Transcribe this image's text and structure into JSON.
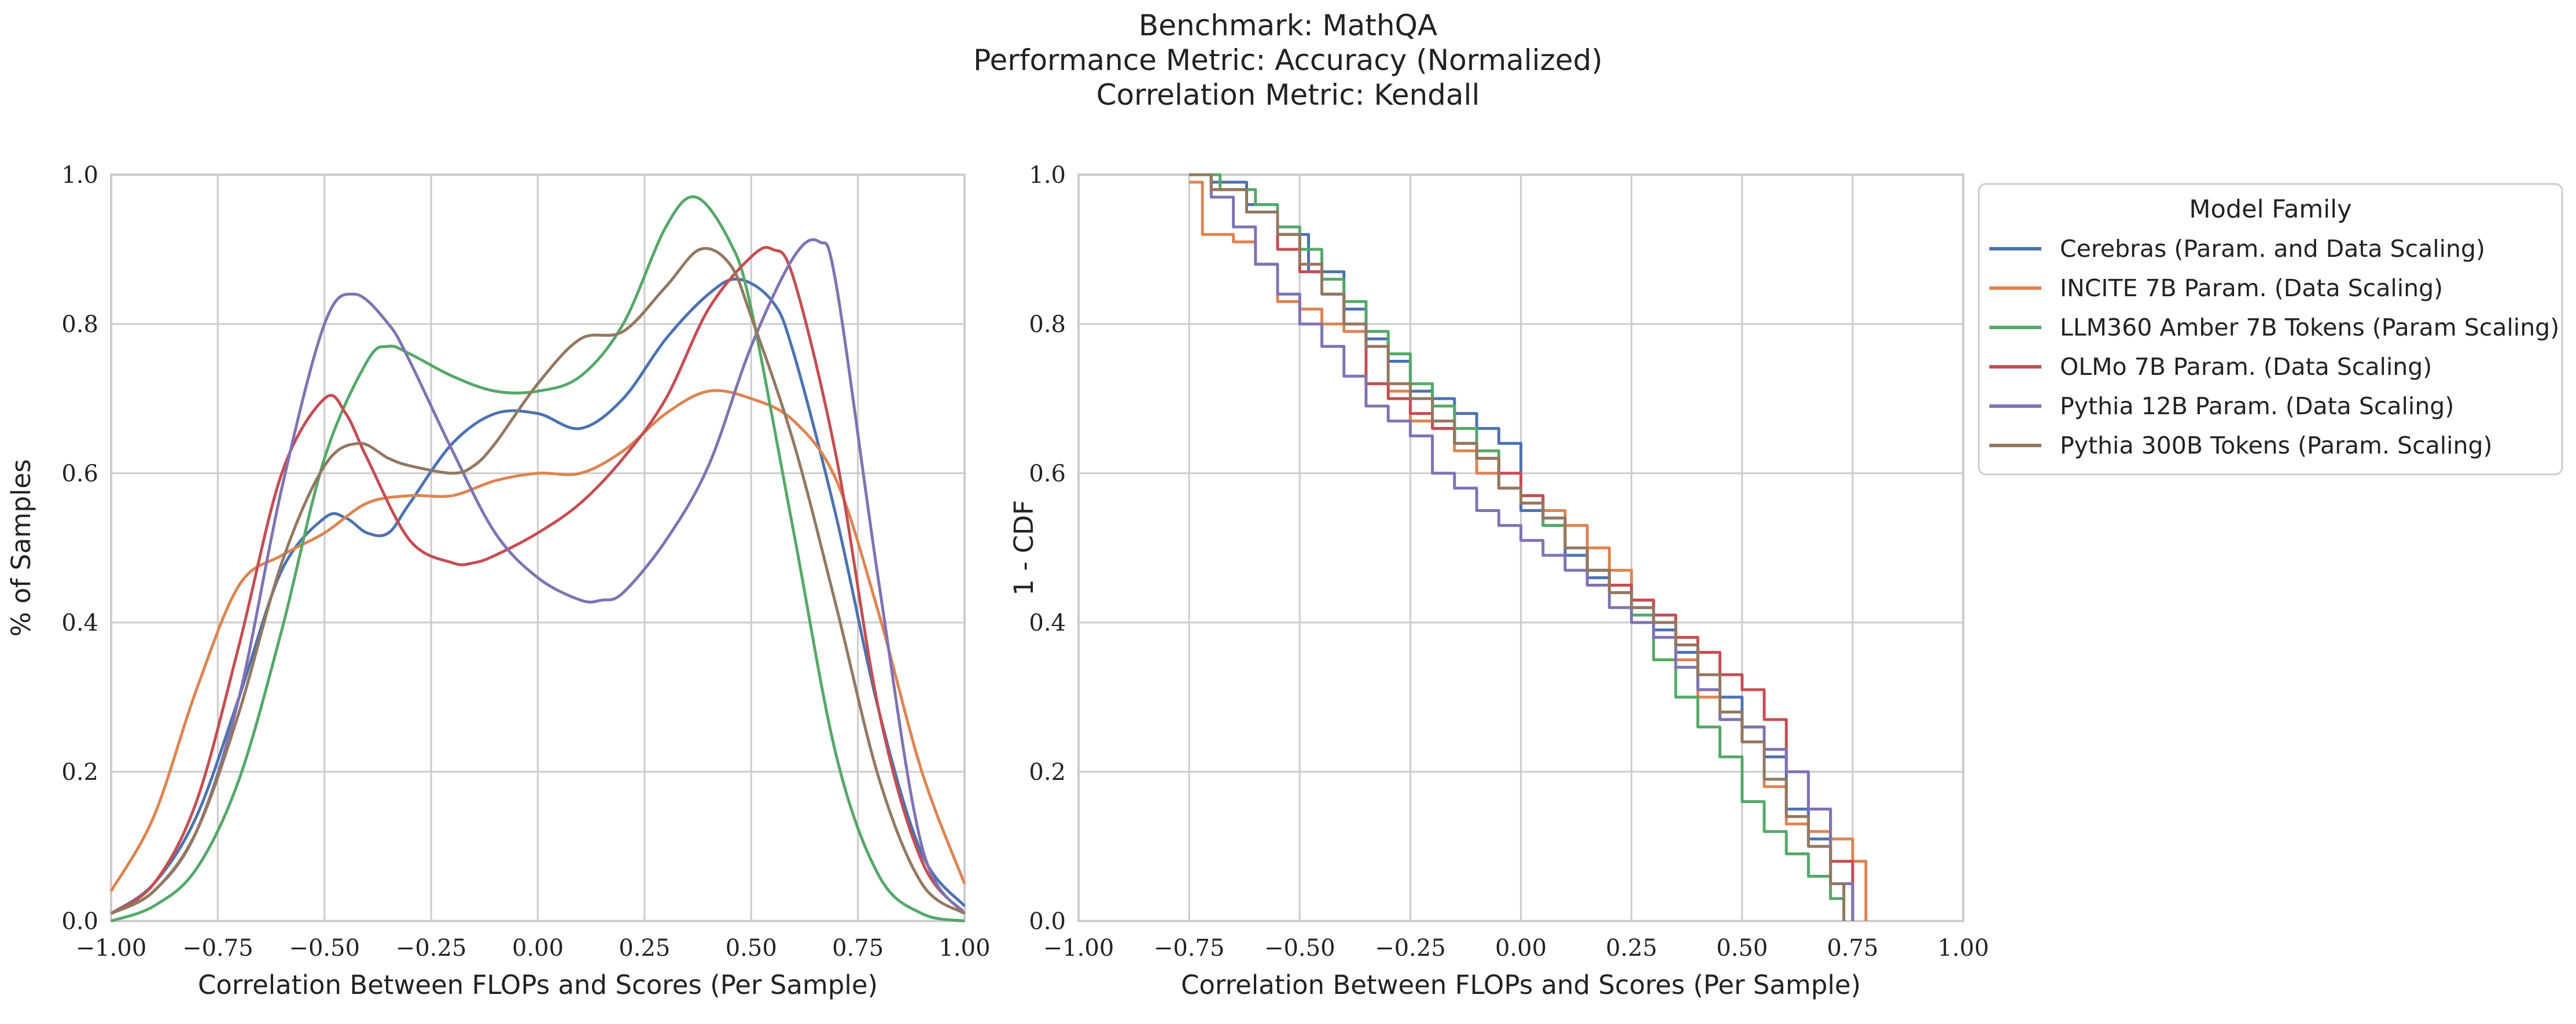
{
  "title_lines": [
    "Benchmark: MathQA",
    "Performance Metric: Accuracy (Normalized)",
    "Correlation Metric: Kendall"
  ],
  "colors": {
    "Cerebras": "#4c72b0",
    "INCITE": "#dd8452",
    "LLM360": "#55a868",
    "OLMo": "#c44e52",
    "Pythia12B": "#8172b3",
    "Pythia300B": "#937860",
    "grid": "#cccccc",
    "frame": "#cccccc"
  },
  "legend": {
    "title": "Model Family",
    "entries": [
      {
        "key": "Cerebras",
        "label": "Cerebras (Param. and Data Scaling)"
      },
      {
        "key": "INCITE",
        "label": "INCITE 7B Param. (Data Scaling)"
      },
      {
        "key": "LLM360",
        "label": "LLM360 Amber 7B Tokens (Param Scaling)"
      },
      {
        "key": "OLMo",
        "label": "OLMo 7B Param. (Data Scaling)"
      },
      {
        "key": "Pythia12B",
        "label": "Pythia 12B Param. (Data Scaling)"
      },
      {
        "key": "Pythia300B",
        "label": "Pythia 300B Tokens (Param. Scaling)"
      }
    ]
  },
  "chart_data": [
    {
      "type": "line",
      "xlabel": "Correlation Between FLOPs and Scores (Per Sample)",
      "ylabel": "% of Samples",
      "xlim": [
        -1.0,
        1.0
      ],
      "ylim": [
        0.0,
        1.0
      ],
      "xticks": [
        "−1.00",
        "−0.75",
        "−0.50",
        "−0.25",
        "0.00",
        "0.25",
        "0.50",
        "0.75",
        "1.00"
      ],
      "yticks": [
        "0.0",
        "0.2",
        "0.4",
        "0.6",
        "0.8",
        "1.0"
      ],
      "grid": true,
      "series": [
        {
          "key": "Cerebras",
          "name": "Cerebras (Param. and Data Scaling)",
          "x": [
            -1.0,
            -0.9,
            -0.8,
            -0.7,
            -0.6,
            -0.5,
            -0.45,
            -0.4,
            -0.35,
            -0.3,
            -0.2,
            -0.1,
            0.0,
            0.1,
            0.2,
            0.3,
            0.4,
            0.47,
            0.55,
            0.6,
            0.7,
            0.8,
            0.9,
            1.0
          ],
          "y": [
            0.01,
            0.05,
            0.14,
            0.3,
            0.47,
            0.54,
            0.54,
            0.52,
            0.52,
            0.56,
            0.64,
            0.68,
            0.68,
            0.66,
            0.7,
            0.78,
            0.84,
            0.86,
            0.83,
            0.76,
            0.54,
            0.28,
            0.09,
            0.02
          ]
        },
        {
          "key": "INCITE",
          "name": "INCITE 7B Param. (Data Scaling)",
          "x": [
            -1.0,
            -0.9,
            -0.8,
            -0.7,
            -0.6,
            -0.5,
            -0.4,
            -0.3,
            -0.2,
            -0.1,
            0.0,
            0.1,
            0.2,
            0.3,
            0.4,
            0.5,
            0.6,
            0.7,
            0.8,
            0.9,
            1.0
          ],
          "y": [
            0.04,
            0.14,
            0.31,
            0.45,
            0.49,
            0.52,
            0.56,
            0.57,
            0.57,
            0.59,
            0.6,
            0.6,
            0.63,
            0.68,
            0.71,
            0.7,
            0.67,
            0.59,
            0.41,
            0.2,
            0.05
          ]
        },
        {
          "key": "LLM360",
          "name": "LLM360 Amber 7B Tokens (Param Scaling)",
          "x": [
            -1.0,
            -0.9,
            -0.8,
            -0.7,
            -0.6,
            -0.5,
            -0.4,
            -0.35,
            -0.3,
            -0.2,
            -0.1,
            0.0,
            0.1,
            0.2,
            0.3,
            0.37,
            0.45,
            0.5,
            0.6,
            0.7,
            0.8,
            0.9,
            1.0
          ],
          "y": [
            0.0,
            0.02,
            0.07,
            0.19,
            0.39,
            0.62,
            0.75,
            0.77,
            0.76,
            0.73,
            0.71,
            0.71,
            0.73,
            0.8,
            0.93,
            0.97,
            0.91,
            0.82,
            0.52,
            0.22,
            0.06,
            0.01,
            0.0
          ]
        },
        {
          "key": "OLMo",
          "name": "OLMo 7B Param. (Data Scaling)",
          "x": [
            -1.0,
            -0.9,
            -0.8,
            -0.7,
            -0.6,
            -0.5,
            -0.45,
            -0.4,
            -0.3,
            -0.2,
            -0.15,
            -0.1,
            0.0,
            0.1,
            0.2,
            0.3,
            0.4,
            0.5,
            0.55,
            0.6,
            0.7,
            0.8,
            0.9,
            1.0
          ],
          "y": [
            0.01,
            0.05,
            0.16,
            0.37,
            0.6,
            0.7,
            0.68,
            0.62,
            0.51,
            0.48,
            0.48,
            0.49,
            0.52,
            0.56,
            0.62,
            0.7,
            0.82,
            0.89,
            0.9,
            0.86,
            0.62,
            0.28,
            0.08,
            0.01
          ]
        },
        {
          "key": "Pythia12B",
          "name": "Pythia 12B Param. (Data Scaling)",
          "x": [
            -1.0,
            -0.9,
            -0.8,
            -0.7,
            -0.6,
            -0.5,
            -0.43,
            -0.35,
            -0.3,
            -0.2,
            -0.1,
            0.0,
            0.1,
            0.15,
            0.2,
            0.3,
            0.4,
            0.5,
            0.6,
            0.66,
            0.7,
            0.8,
            0.9,
            1.0
          ],
          "y": [
            0.01,
            0.04,
            0.12,
            0.3,
            0.58,
            0.8,
            0.84,
            0.8,
            0.75,
            0.63,
            0.52,
            0.46,
            0.43,
            0.43,
            0.44,
            0.51,
            0.61,
            0.77,
            0.89,
            0.91,
            0.85,
            0.45,
            0.1,
            0.01
          ]
        },
        {
          "key": "Pythia300B",
          "name": "Pythia 300B Tokens (Param. Scaling)",
          "x": [
            -1.0,
            -0.9,
            -0.8,
            -0.7,
            -0.6,
            -0.5,
            -0.42,
            -0.35,
            -0.3,
            -0.2,
            -0.15,
            -0.1,
            0.0,
            0.1,
            0.2,
            0.3,
            0.38,
            0.45,
            0.5,
            0.6,
            0.7,
            0.8,
            0.9,
            1.0
          ],
          "y": [
            0.01,
            0.04,
            0.12,
            0.28,
            0.48,
            0.61,
            0.64,
            0.62,
            0.61,
            0.6,
            0.61,
            0.64,
            0.72,
            0.78,
            0.79,
            0.85,
            0.9,
            0.88,
            0.81,
            0.64,
            0.42,
            0.19,
            0.05,
            0.01
          ]
        }
      ]
    },
    {
      "type": "line",
      "xlabel": "Correlation Between FLOPs and Scores (Per Sample)",
      "ylabel": "1 - CDF",
      "xlim": [
        -1.0,
        1.0
      ],
      "ylim": [
        0.0,
        1.0
      ],
      "xticks": [
        "−1.00",
        "−0.75",
        "−0.50",
        "−0.25",
        "0.00",
        "0.25",
        "0.50",
        "0.75",
        "1.00"
      ],
      "yticks": [
        "0.0",
        "0.2",
        "0.4",
        "0.6",
        "0.8",
        "1.0"
      ],
      "grid": true,
      "step": true,
      "series": [
        {
          "key": "Cerebras",
          "name": "Cerebras (Param. and Data Scaling)",
          "x": [
            -0.75,
            -0.7,
            -0.62,
            -0.55,
            -0.48,
            -0.4,
            -0.35,
            -0.3,
            -0.25,
            -0.2,
            -0.15,
            -0.1,
            -0.05,
            0.0,
            0.05,
            0.1,
            0.15,
            0.2,
            0.25,
            0.3,
            0.35,
            0.4,
            0.45,
            0.5,
            0.55,
            0.6,
            0.65,
            0.7,
            0.75
          ],
          "y": [
            1.0,
            0.99,
            0.96,
            0.92,
            0.87,
            0.82,
            0.78,
            0.75,
            0.71,
            0.7,
            0.68,
            0.66,
            0.64,
            0.55,
            0.53,
            0.49,
            0.46,
            0.44,
            0.42,
            0.39,
            0.36,
            0.31,
            0.3,
            0.26,
            0.22,
            0.15,
            0.11,
            0.05,
            0.0
          ]
        },
        {
          "key": "INCITE",
          "name": "INCITE 7B Param. (Data Scaling)",
          "x": [
            -0.75,
            -0.72,
            -0.65,
            -0.6,
            -0.55,
            -0.5,
            -0.45,
            -0.4,
            -0.35,
            -0.3,
            -0.25,
            -0.2,
            -0.15,
            -0.1,
            -0.05,
            0.0,
            0.05,
            0.1,
            0.15,
            0.2,
            0.25,
            0.3,
            0.35,
            0.4,
            0.45,
            0.5,
            0.55,
            0.6,
            0.65,
            0.7,
            0.75,
            0.78
          ],
          "y": [
            0.99,
            0.92,
            0.91,
            0.88,
            0.83,
            0.82,
            0.8,
            0.79,
            0.72,
            0.71,
            0.67,
            0.66,
            0.63,
            0.6,
            0.58,
            0.56,
            0.55,
            0.53,
            0.5,
            0.47,
            0.43,
            0.4,
            0.35,
            0.3,
            0.27,
            0.24,
            0.18,
            0.13,
            0.12,
            0.11,
            0.08,
            0.0
          ]
        },
        {
          "key": "LLM360",
          "name": "LLM360 Amber 7B Tokens (Param Scaling)",
          "x": [
            -0.75,
            -0.68,
            -0.6,
            -0.55,
            -0.5,
            -0.45,
            -0.4,
            -0.35,
            -0.3,
            -0.25,
            -0.2,
            -0.15,
            -0.1,
            -0.05,
            0.0,
            0.05,
            0.1,
            0.15,
            0.2,
            0.25,
            0.3,
            0.35,
            0.4,
            0.45,
            0.5,
            0.55,
            0.6,
            0.65,
            0.7,
            0.73
          ],
          "y": [
            1.0,
            0.98,
            0.96,
            0.93,
            0.9,
            0.86,
            0.83,
            0.79,
            0.76,
            0.72,
            0.69,
            0.66,
            0.63,
            0.6,
            0.57,
            0.53,
            0.5,
            0.47,
            0.45,
            0.41,
            0.35,
            0.3,
            0.26,
            0.22,
            0.16,
            0.12,
            0.09,
            0.06,
            0.03,
            0.0
          ]
        },
        {
          "key": "OLMo",
          "name": "OLMo 7B Param. (Data Scaling)",
          "x": [
            -0.75,
            -0.7,
            -0.62,
            -0.55,
            -0.5,
            -0.45,
            -0.4,
            -0.35,
            -0.3,
            -0.25,
            -0.2,
            -0.15,
            -0.1,
            -0.05,
            0.0,
            0.05,
            0.1,
            0.15,
            0.2,
            0.25,
            0.3,
            0.35,
            0.4,
            0.45,
            0.5,
            0.55,
            0.6,
            0.65,
            0.7,
            0.75
          ],
          "y": [
            1.0,
            0.98,
            0.95,
            0.9,
            0.87,
            0.84,
            0.8,
            0.72,
            0.7,
            0.68,
            0.66,
            0.64,
            0.62,
            0.6,
            0.57,
            0.54,
            0.5,
            0.47,
            0.45,
            0.43,
            0.41,
            0.38,
            0.36,
            0.33,
            0.31,
            0.27,
            0.2,
            0.15,
            0.08,
            0.0
          ]
        },
        {
          "key": "Pythia12B",
          "name": "Pythia 12B Param. (Data Scaling)",
          "x": [
            -0.75,
            -0.7,
            -0.65,
            -0.6,
            -0.55,
            -0.5,
            -0.45,
            -0.4,
            -0.35,
            -0.3,
            -0.25,
            -0.2,
            -0.15,
            -0.1,
            -0.05,
            0.0,
            0.05,
            0.1,
            0.15,
            0.2,
            0.25,
            0.3,
            0.35,
            0.4,
            0.45,
            0.5,
            0.55,
            0.6,
            0.65,
            0.7,
            0.75
          ],
          "y": [
            1.0,
            0.97,
            0.93,
            0.88,
            0.84,
            0.8,
            0.77,
            0.73,
            0.69,
            0.67,
            0.65,
            0.6,
            0.58,
            0.55,
            0.53,
            0.51,
            0.49,
            0.47,
            0.45,
            0.42,
            0.4,
            0.38,
            0.34,
            0.31,
            0.27,
            0.26,
            0.23,
            0.2,
            0.15,
            0.05,
            0.0
          ]
        },
        {
          "key": "Pythia300B",
          "name": "Pythia 300B Tokens (Param. Scaling)",
          "x": [
            -0.75,
            -0.7,
            -0.62,
            -0.55,
            -0.5,
            -0.45,
            -0.4,
            -0.35,
            -0.3,
            -0.25,
            -0.2,
            -0.15,
            -0.1,
            -0.05,
            0.0,
            0.05,
            0.1,
            0.15,
            0.2,
            0.25,
            0.3,
            0.35,
            0.4,
            0.45,
            0.5,
            0.55,
            0.6,
            0.65,
            0.7,
            0.73
          ],
          "y": [
            1.0,
            0.98,
            0.95,
            0.92,
            0.88,
            0.84,
            0.8,
            0.77,
            0.72,
            0.7,
            0.67,
            0.64,
            0.62,
            0.58,
            0.56,
            0.54,
            0.5,
            0.47,
            0.44,
            0.42,
            0.4,
            0.37,
            0.33,
            0.28,
            0.24,
            0.19,
            0.14,
            0.1,
            0.05,
            0.0
          ]
        }
      ]
    }
  ]
}
